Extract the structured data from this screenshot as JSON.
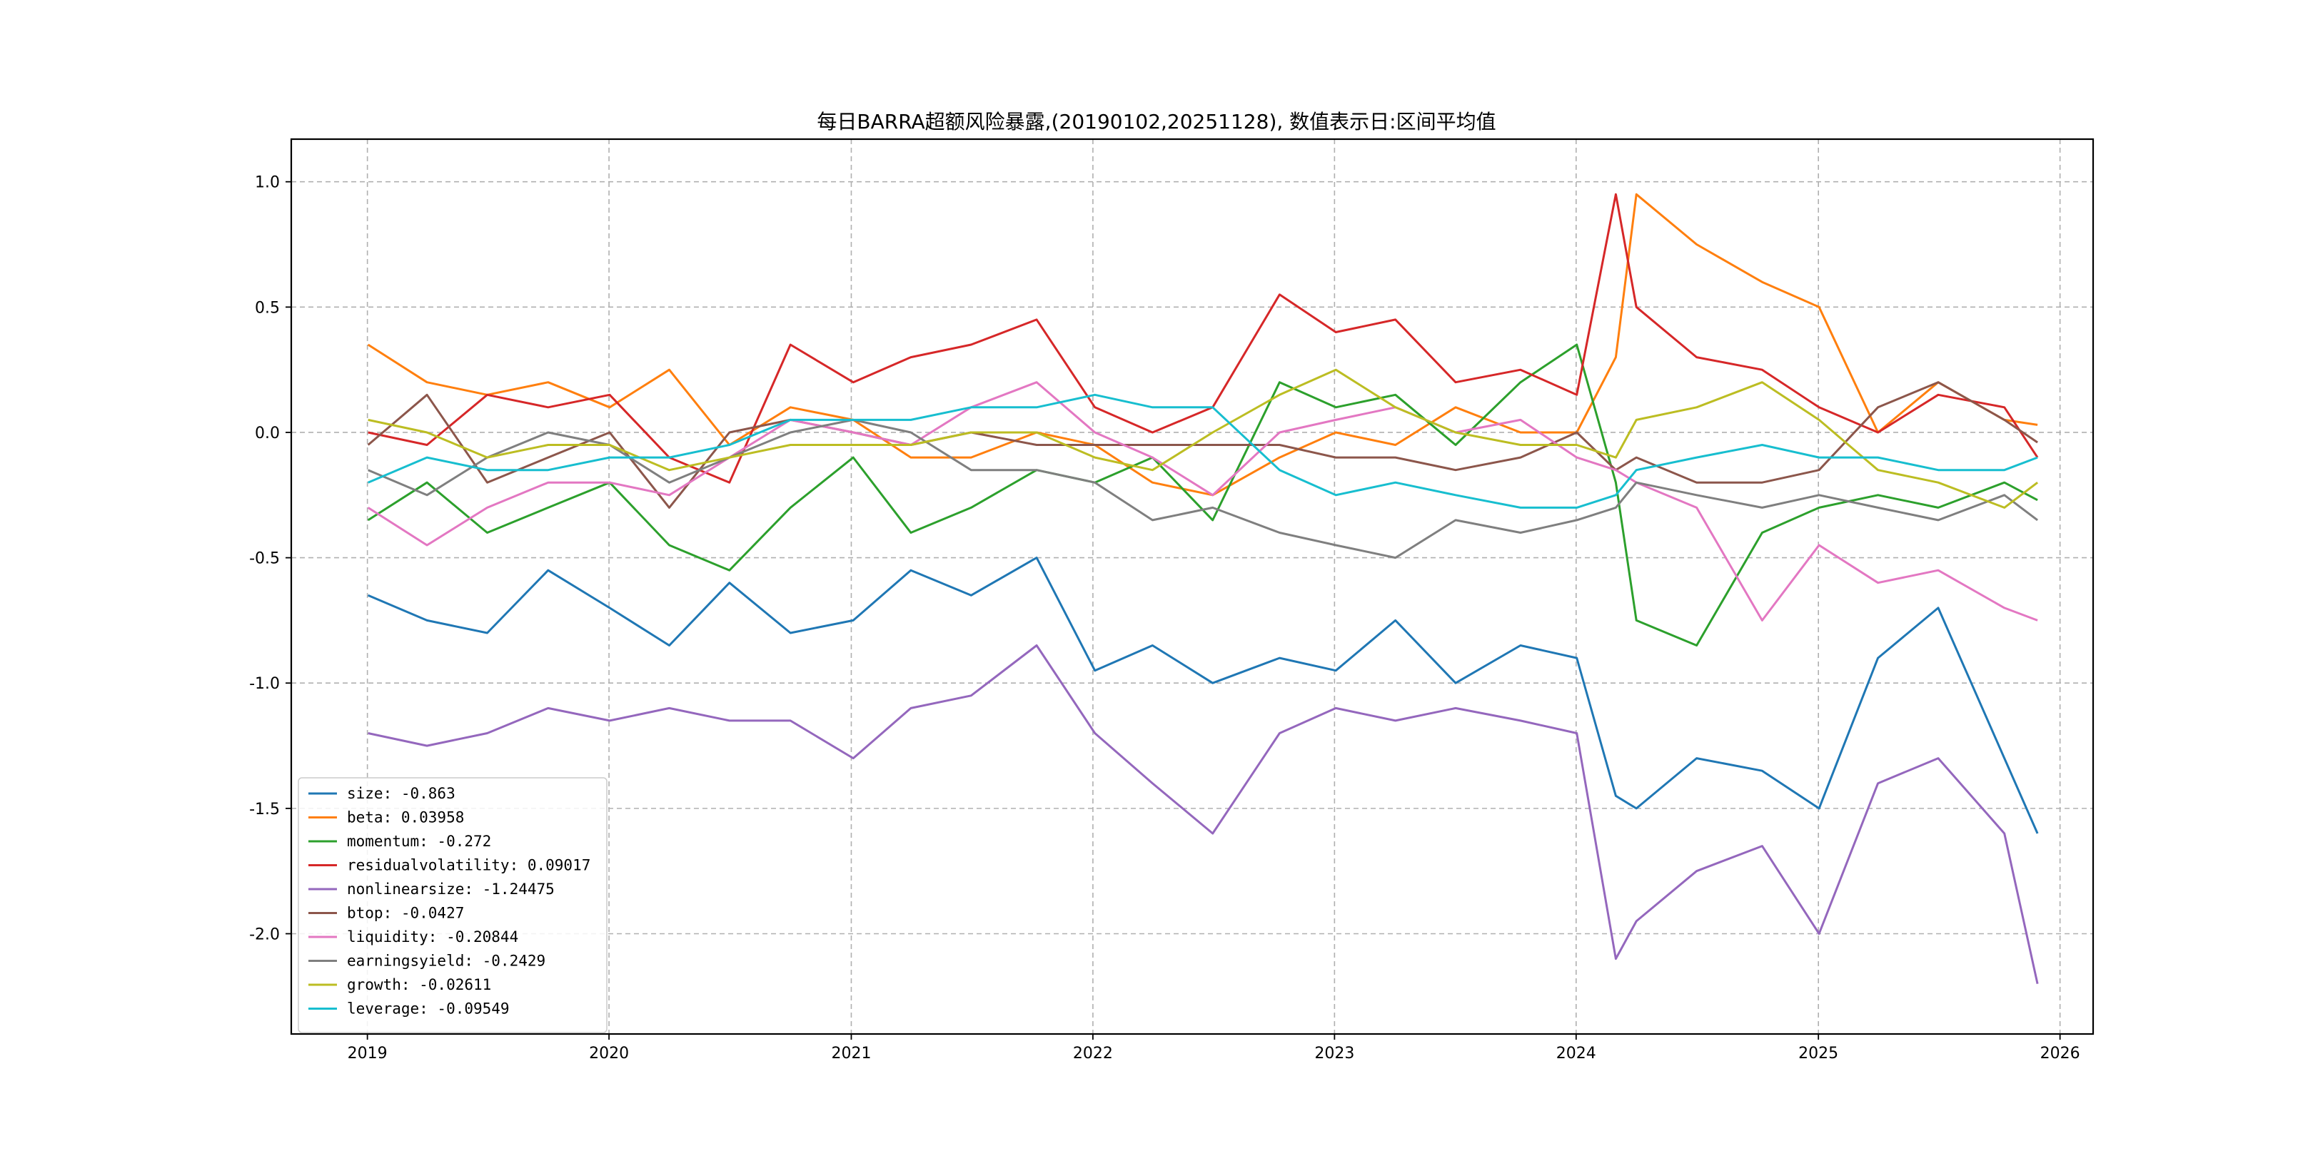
{
  "chart_data": {
    "type": "line",
    "title": "每日BARRA超额风险暴露,(20190102,20251128), 数值表示日:区间平均值",
    "xlabel": "",
    "ylabel": "",
    "xlim": [
      "2018-09-08",
      "2026-02-20"
    ],
    "ylim": [
      -2.4,
      1.17
    ],
    "grid": true,
    "legend_position": "lower-left",
    "x_ticks": [
      "2019",
      "2020",
      "2021",
      "2022",
      "2023",
      "2024",
      "2025",
      "2026"
    ],
    "y_ticks": [
      "1.0",
      "0.5",
      "0.0",
      "-0.5",
      "-1.0",
      "-1.5",
      "-2.0"
    ],
    "x_tick_values": [
      "2019-01-01",
      "2020-01-01",
      "2021-01-01",
      "2022-01-01",
      "2023-01-01",
      "2024-01-01",
      "2025-01-01",
      "2026-01-01"
    ],
    "y_tick_values": [
      1.0,
      0.5,
      0.0,
      -0.5,
      -1.0,
      -1.5,
      -2.0
    ],
    "x": [
      "2019-01-02",
      "2019-04-01",
      "2019-07-01",
      "2019-10-01",
      "2020-01-02",
      "2020-04-01",
      "2020-07-01",
      "2020-10-01",
      "2021-01-04",
      "2021-04-01",
      "2021-07-01",
      "2021-10-08",
      "2022-01-04",
      "2022-04-01",
      "2022-07-01",
      "2022-10-10",
      "2023-01-03",
      "2023-04-03",
      "2023-07-03",
      "2023-10-09",
      "2024-01-02",
      "2024-03-01",
      "2024-04-01",
      "2024-07-01",
      "2024-10-08",
      "2025-01-02",
      "2025-04-01",
      "2025-07-01",
      "2025-10-09",
      "2025-11-28"
    ],
    "series": [
      {
        "name": "size: -0.863",
        "color": "#1f77b4",
        "values": [
          -0.65,
          -0.75,
          -0.8,
          -0.55,
          -0.7,
          -0.85,
          -0.6,
          -0.8,
          -0.75,
          -0.55,
          -0.65,
          -0.5,
          -0.95,
          -0.85,
          -1.0,
          -0.9,
          -0.95,
          -0.75,
          -1.0,
          -0.85,
          -0.9,
          -1.45,
          -1.5,
          -1.3,
          -1.35,
          -1.5,
          -0.9,
          -0.7,
          -1.3,
          -1.6
        ]
      },
      {
        "name": "beta: 0.03958",
        "color": "#ff7f0e",
        "values": [
          0.35,
          0.2,
          0.15,
          0.2,
          0.1,
          0.25,
          -0.05,
          0.1,
          0.05,
          -0.1,
          -0.1,
          0.0,
          -0.05,
          -0.2,
          -0.25,
          -0.1,
          0.0,
          -0.05,
          0.1,
          0.0,
          0.0,
          0.3,
          0.95,
          0.75,
          0.6,
          0.5,
          0.0,
          0.2,
          0.05,
          0.03
        ]
      },
      {
        "name": "momentum: -0.272",
        "color": "#2ca02c",
        "values": [
          -0.35,
          -0.2,
          -0.4,
          -0.3,
          -0.2,
          -0.45,
          -0.55,
          -0.3,
          -0.1,
          -0.4,
          -0.3,
          -0.15,
          -0.2,
          -0.1,
          -0.35,
          0.2,
          0.1,
          0.15,
          -0.05,
          0.2,
          0.35,
          -0.2,
          -0.75,
          -0.85,
          -0.4,
          -0.3,
          -0.25,
          -0.3,
          -0.2,
          -0.27
        ]
      },
      {
        "name": "residualvolatility: 0.09017",
        "color": "#d62728",
        "values": [
          0.0,
          -0.05,
          0.15,
          0.1,
          0.15,
          -0.1,
          -0.2,
          0.35,
          0.2,
          0.3,
          0.35,
          0.45,
          0.1,
          0.0,
          0.1,
          0.55,
          0.4,
          0.45,
          0.2,
          0.25,
          0.15,
          0.95,
          0.5,
          0.3,
          0.25,
          0.1,
          0.0,
          0.15,
          0.1,
          -0.1
        ]
      },
      {
        "name": "nonlinearsize: -1.24475",
        "color": "#9467bd",
        "values": [
          -1.2,
          -1.25,
          -1.2,
          -1.1,
          -1.15,
          -1.1,
          -1.15,
          -1.15,
          -1.3,
          -1.1,
          -1.05,
          -0.85,
          -1.2,
          -1.4,
          -1.6,
          -1.2,
          -1.1,
          -1.15,
          -1.1,
          -1.15,
          -1.2,
          -2.1,
          -1.95,
          -1.75,
          -1.65,
          -2.0,
          -1.4,
          -1.3,
          -1.6,
          -2.2
        ]
      },
      {
        "name": "btop: -0.0427",
        "color": "#8c564b",
        "values": [
          -0.05,
          0.15,
          -0.2,
          -0.1,
          0.0,
          -0.3,
          0.0,
          0.05,
          0.0,
          -0.05,
          0.0,
          -0.05,
          -0.05,
          -0.05,
          -0.05,
          -0.05,
          -0.1,
          -0.1,
          -0.15,
          -0.1,
          0.0,
          -0.15,
          -0.1,
          -0.2,
          -0.2,
          -0.15,
          0.1,
          0.2,
          0.05,
          -0.04
        ]
      },
      {
        "name": "liquidity: -0.20844",
        "color": "#e377c2",
        "values": [
          -0.3,
          -0.45,
          -0.3,
          -0.2,
          -0.2,
          -0.25,
          -0.1,
          0.05,
          0.0,
          -0.05,
          0.1,
          0.2,
          0.0,
          -0.1,
          -0.25,
          0.0,
          0.05,
          0.1,
          0.0,
          0.05,
          -0.1,
          -0.15,
          -0.2,
          -0.3,
          -0.75,
          -0.45,
          -0.6,
          -0.55,
          -0.7,
          -0.75
        ]
      },
      {
        "name": "earningsyield: -0.2429",
        "color": "#7f7f7f",
        "values": [
          -0.15,
          -0.25,
          -0.1,
          0.0,
          -0.05,
          -0.2,
          -0.1,
          0.0,
          0.05,
          0.0,
          -0.15,
          -0.15,
          -0.2,
          -0.35,
          -0.3,
          -0.4,
          -0.45,
          -0.5,
          -0.35,
          -0.4,
          -0.35,
          -0.3,
          -0.2,
          -0.25,
          -0.3,
          -0.25,
          -0.3,
          -0.35,
          -0.25,
          -0.35
        ]
      },
      {
        "name": "growth: -0.02611",
        "color": "#bcbd22",
        "values": [
          0.05,
          0.0,
          -0.1,
          -0.05,
          -0.05,
          -0.15,
          -0.1,
          -0.05,
          -0.05,
          -0.05,
          0.0,
          0.0,
          -0.1,
          -0.15,
          0.0,
          0.15,
          0.25,
          0.1,
          0.0,
          -0.05,
          -0.05,
          -0.1,
          0.05,
          0.1,
          0.2,
          0.05,
          -0.15,
          -0.2,
          -0.3,
          -0.2
        ]
      },
      {
        "name": "leverage: -0.09549",
        "color": "#17becf",
        "values": [
          -0.2,
          -0.1,
          -0.15,
          -0.15,
          -0.1,
          -0.1,
          -0.05,
          0.05,
          0.05,
          0.05,
          0.1,
          0.1,
          0.15,
          0.1,
          0.1,
          -0.15,
          -0.25,
          -0.2,
          -0.25,
          -0.3,
          -0.3,
          -0.25,
          -0.15,
          -0.1,
          -0.05,
          -0.1,
          -0.1,
          -0.15,
          -0.15,
          -0.1
        ]
      }
    ]
  }
}
